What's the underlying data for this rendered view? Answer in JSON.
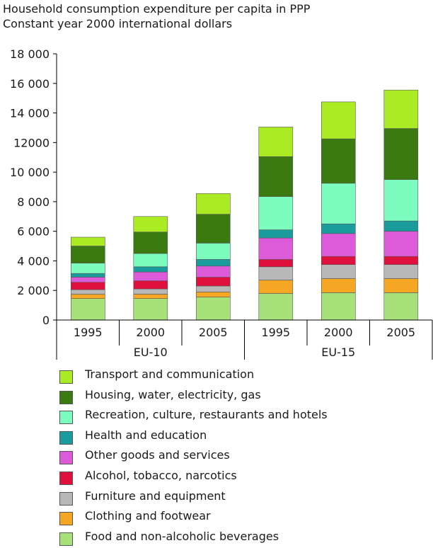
{
  "title_lines": [
    "Household consumption expenditure per capita in PPP",
    "Constant year 2000 international dollars"
  ],
  "chart_data": {
    "type": "bar",
    "stacked": true,
    "title": "Household consumption expenditure per capita in PPP",
    "subtitle": "Constant year 2000 international dollars",
    "categories": [
      "1995",
      "2000",
      "2005",
      "1995",
      "2000",
      "2005"
    ],
    "groups": [
      {
        "label": "EU-10",
        "categories": [
          "1995",
          "2000",
          "2005"
        ]
      },
      {
        "label": "EU-15",
        "categories": [
          "1995",
          "2000",
          "2005"
        ]
      }
    ],
    "ylim": [
      0,
      18000
    ],
    "yticks": [
      0,
      2000,
      4000,
      6000,
      8000,
      10000,
      12000,
      14000,
      16000,
      18000
    ],
    "ytick_labels": [
      "0",
      "2 000",
      "4 000",
      "6 000",
      "8 000",
      "10 000",
      "12000",
      "14 000",
      "16 000",
      "18 000"
    ],
    "grid": false,
    "legend_position": "bottom",
    "series": [
      {
        "name": "Food and non-alcoholic beverages",
        "color": "#a8e07a",
        "values": [
          1450,
          1450,
          1550,
          1800,
          1850,
          1850
        ]
      },
      {
        "name": "Clothing and footwear",
        "color": "#f5a623",
        "values": [
          300,
          300,
          350,
          900,
          950,
          950
        ]
      },
      {
        "name": "Furniture and equipment",
        "color": "#b8b8b8",
        "values": [
          300,
          350,
          400,
          900,
          950,
          950
        ]
      },
      {
        "name": "Alcohol, tobacco, narcotics",
        "color": "#e0103c",
        "values": [
          500,
          550,
          600,
          500,
          550,
          550
        ]
      },
      {
        "name": "Other goods and services",
        "color": "#dd5ad8",
        "values": [
          350,
          600,
          750,
          1450,
          1550,
          1700
        ]
      },
      {
        "name": "Health and education",
        "color": "#1a9c9c",
        "values": [
          250,
          350,
          450,
          550,
          650,
          700
        ]
      },
      {
        "name": "Recreation, culture, restaurants and hotels",
        "color": "#7dfcc0",
        "values": [
          700,
          900,
          1100,
          2250,
          2750,
          2800
        ]
      },
      {
        "name": "Housing, water, electricity, gas",
        "color": "#3a7a10",
        "values": [
          1150,
          1450,
          1950,
          2700,
          3000,
          3450
        ]
      },
      {
        "name": "Transport and communication",
        "color": "#aaeb24",
        "values": [
          600,
          1050,
          1400,
          2000,
          2500,
          2600
        ]
      }
    ],
    "legend_order": [
      8,
      7,
      6,
      5,
      4,
      3,
      2,
      1,
      0
    ]
  }
}
